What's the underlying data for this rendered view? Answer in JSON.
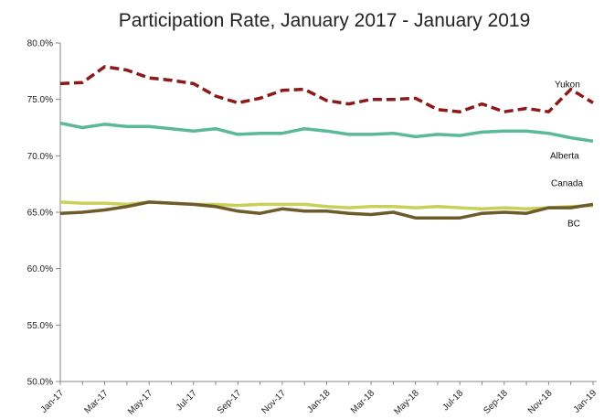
{
  "chart_data": {
    "type": "line",
    "title": "Participation Rate, January 2017 - January 2019",
    "xlabel": "",
    "ylabel": "",
    "ylim": [
      50,
      80
    ],
    "y_ticks": [
      "50.0%",
      "55.0%",
      "60.0%",
      "65.0%",
      "70.0%",
      "75.0%",
      "80.0%"
    ],
    "y_tick_values": [
      50,
      55,
      60,
      65,
      70,
      75,
      80
    ],
    "x": [
      "Jan-17",
      "Feb-17",
      "Mar-17",
      "Apr-17",
      "May-17",
      "Jun-17",
      "Jul-17",
      "Aug-17",
      "Sep-17",
      "Oct-17",
      "Nov-17",
      "Dec-17",
      "Jan-18",
      "Feb-18",
      "Mar-18",
      "Apr-18",
      "May-18",
      "Jun-18",
      "Jul-18",
      "Aug-18",
      "Sep-18",
      "Oct-18",
      "Nov-18",
      "Dec-18",
      "Jan-19"
    ],
    "x_tick_labels": [
      "Jan-17",
      "Mar-17",
      "May-17",
      "Jul-17",
      "Sep-17",
      "Nov-17",
      "Jan-18",
      "Mar-18",
      "May-18",
      "Jul-18",
      "Sep-18",
      "Nov-18",
      "Jan-19"
    ],
    "grid": false,
    "legend": "none",
    "series": [
      {
        "name": "Yukon",
        "color": "#8b1a1a",
        "style": "dashed",
        "values": [
          76.4,
          76.5,
          77.9,
          77.6,
          76.9,
          76.7,
          76.4,
          75.3,
          74.7,
          75.1,
          75.8,
          75.9,
          74.9,
          74.6,
          75.0,
          75.0,
          75.1,
          74.1,
          73.9,
          74.6,
          73.9,
          74.2,
          73.9,
          75.9,
          74.7
        ]
      },
      {
        "name": "Alberta",
        "color": "#5bb89a",
        "style": "solid",
        "values": [
          72.9,
          72.5,
          72.8,
          72.6,
          72.6,
          72.4,
          72.2,
          72.4,
          71.9,
          72.0,
          72.0,
          72.4,
          72.2,
          71.9,
          71.9,
          72.0,
          71.7,
          71.9,
          71.8,
          72.1,
          72.2,
          72.2,
          72.0,
          71.6,
          71.3
        ]
      },
      {
        "name": "Canada",
        "color": "#c8d05a",
        "style": "solid",
        "values": [
          65.9,
          65.8,
          65.8,
          65.7,
          65.9,
          65.8,
          65.7,
          65.7,
          65.6,
          65.7,
          65.7,
          65.7,
          65.5,
          65.4,
          65.5,
          65.5,
          65.4,
          65.5,
          65.4,
          65.3,
          65.4,
          65.3,
          65.4,
          65.5,
          65.6
        ]
      },
      {
        "name": "BC",
        "color": "#6e5a2a",
        "style": "solid",
        "values": [
          64.9,
          65.0,
          65.2,
          65.5,
          65.9,
          65.8,
          65.7,
          65.5,
          65.1,
          64.9,
          65.3,
          65.1,
          65.1,
          64.9,
          64.8,
          65.0,
          64.5,
          64.5,
          64.5,
          64.9,
          65.0,
          64.9,
          65.4,
          65.4,
          65.7
        ]
      }
    ]
  }
}
